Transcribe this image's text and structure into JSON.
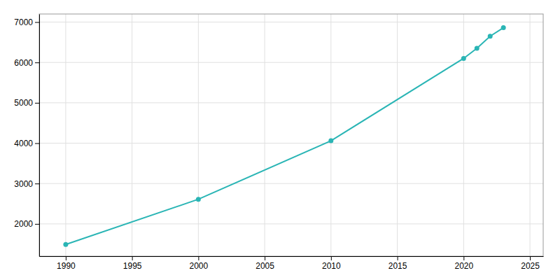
{
  "chart_data": {
    "type": "line",
    "x": [
      1990,
      2000,
      2010,
      2020,
      2021,
      2022,
      2023
    ],
    "values": [
      1490,
      2610,
      4060,
      6100,
      6350,
      6650,
      6860
    ],
    "color": "#2AB5B5",
    "marker": "circle",
    "xlim": [
      1988,
      2026
    ],
    "ylim": [
      1200,
      7200
    ],
    "xticks": [
      1990,
      1995,
      2000,
      2005,
      2010,
      2015,
      2020,
      2025
    ],
    "yticks": [
      2000,
      3000,
      4000,
      5000,
      6000,
      7000
    ],
    "grid": true
  }
}
